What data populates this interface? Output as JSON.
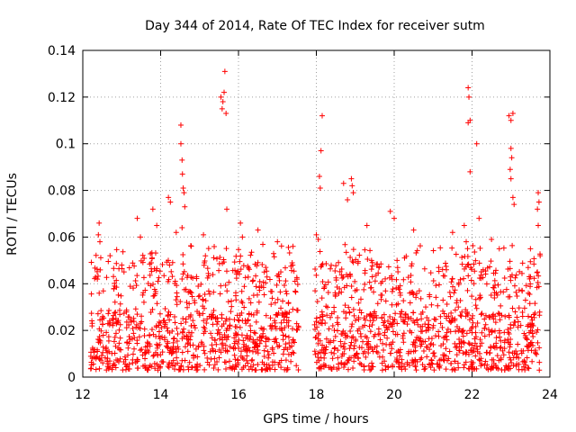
{
  "chart_data": {
    "type": "scatter",
    "title": "Day 344 of 2014, Rate Of TEC Index for receiver sutm",
    "xlabel": "GPS time / hours",
    "ylabel": "ROTI / TECUs",
    "xlim": [
      12,
      24
    ],
    "ylim": [
      0,
      0.14
    ],
    "x_ticks": [
      12,
      14,
      16,
      18,
      20,
      22,
      24
    ],
    "x_tick_labels": [
      "12",
      "14",
      "16",
      "18",
      "20",
      "22",
      "24"
    ],
    "y_ticks": [
      0,
      0.02,
      0.04,
      0.06,
      0.08,
      0.1,
      0.12,
      0.14
    ],
    "y_tick_labels": [
      "0",
      "0.02",
      "0.04",
      "0.06",
      "0.08",
      "0.1",
      "0.12",
      "0.14"
    ],
    "grid": true,
    "marker": "plus",
    "color": "#ff0000",
    "data_gap_hours": [
      17.55,
      17.95
    ],
    "series": [
      {
        "name": "ROTI",
        "points": [
          [
            12.4,
            0.061
          ],
          [
            12.42,
            0.066
          ],
          [
            12.44,
            0.058
          ],
          [
            12.7,
            0.052
          ],
          [
            13.0,
            0.048
          ],
          [
            13.4,
            0.068
          ],
          [
            13.48,
            0.06
          ],
          [
            13.8,
            0.072
          ],
          [
            13.9,
            0.065
          ],
          [
            14.2,
            0.077
          ],
          [
            14.25,
            0.075
          ],
          [
            14.4,
            0.062
          ],
          [
            14.52,
            0.108
          ],
          [
            14.52,
            0.1
          ],
          [
            14.55,
            0.093
          ],
          [
            14.56,
            0.087
          ],
          [
            14.58,
            0.081
          ],
          [
            14.6,
            0.079
          ],
          [
            14.62,
            0.073
          ],
          [
            14.55,
            0.064
          ],
          [
            15.1,
            0.061
          ],
          [
            15.55,
            0.12
          ],
          [
            15.58,
            0.115
          ],
          [
            15.6,
            0.118
          ],
          [
            15.63,
            0.122
          ],
          [
            15.65,
            0.131
          ],
          [
            15.68,
            0.113
          ],
          [
            15.7,
            0.072
          ],
          [
            16.05,
            0.066
          ],
          [
            16.1,
            0.06
          ],
          [
            16.5,
            0.063
          ],
          [
            17.0,
            0.058
          ],
          [
            17.4,
            0.056
          ],
          [
            18.0,
            0.061
          ],
          [
            18.05,
            0.059
          ],
          [
            18.08,
            0.086
          ],
          [
            18.1,
            0.081
          ],
          [
            18.12,
            0.097
          ],
          [
            18.15,
            0.112
          ],
          [
            18.7,
            0.083
          ],
          [
            18.8,
            0.076
          ],
          [
            18.9,
            0.085
          ],
          [
            18.92,
            0.082
          ],
          [
            18.95,
            0.079
          ],
          [
            19.3,
            0.065
          ],
          [
            19.9,
            0.071
          ],
          [
            20.0,
            0.068
          ],
          [
            20.5,
            0.063
          ],
          [
            21.5,
            0.062
          ],
          [
            21.8,
            0.065
          ],
          [
            21.85,
            0.058
          ],
          [
            21.9,
            0.124
          ],
          [
            21.92,
            0.12
          ],
          [
            21.95,
            0.11
          ],
          [
            21.9,
            0.109
          ],
          [
            21.95,
            0.088
          ],
          [
            22.12,
            0.1
          ],
          [
            22.18,
            0.068
          ],
          [
            22.5,
            0.059
          ],
          [
            22.7,
            0.055
          ],
          [
            22.95,
            0.112
          ],
          [
            23.0,
            0.11
          ],
          [
            23.05,
            0.113
          ],
          [
            23.0,
            0.098
          ],
          [
            23.02,
            0.094
          ],
          [
            22.98,
            0.089
          ],
          [
            23.0,
            0.085
          ],
          [
            23.05,
            0.077
          ],
          [
            23.08,
            0.074
          ],
          [
            23.5,
            0.055
          ],
          [
            23.7,
            0.079
          ],
          [
            23.72,
            0.075
          ],
          [
            23.68,
            0.072
          ],
          [
            23.7,
            0.065
          ],
          [
            23.75,
            0.052
          ]
        ]
      }
    ],
    "dense_band": {
      "note": "thousands of near-continuous points",
      "segments": [
        [
          12.2,
          17.55
        ],
        [
          17.95,
          23.75
        ]
      ],
      "typical_min": 0.003,
      "typical_max": 0.05
    }
  }
}
